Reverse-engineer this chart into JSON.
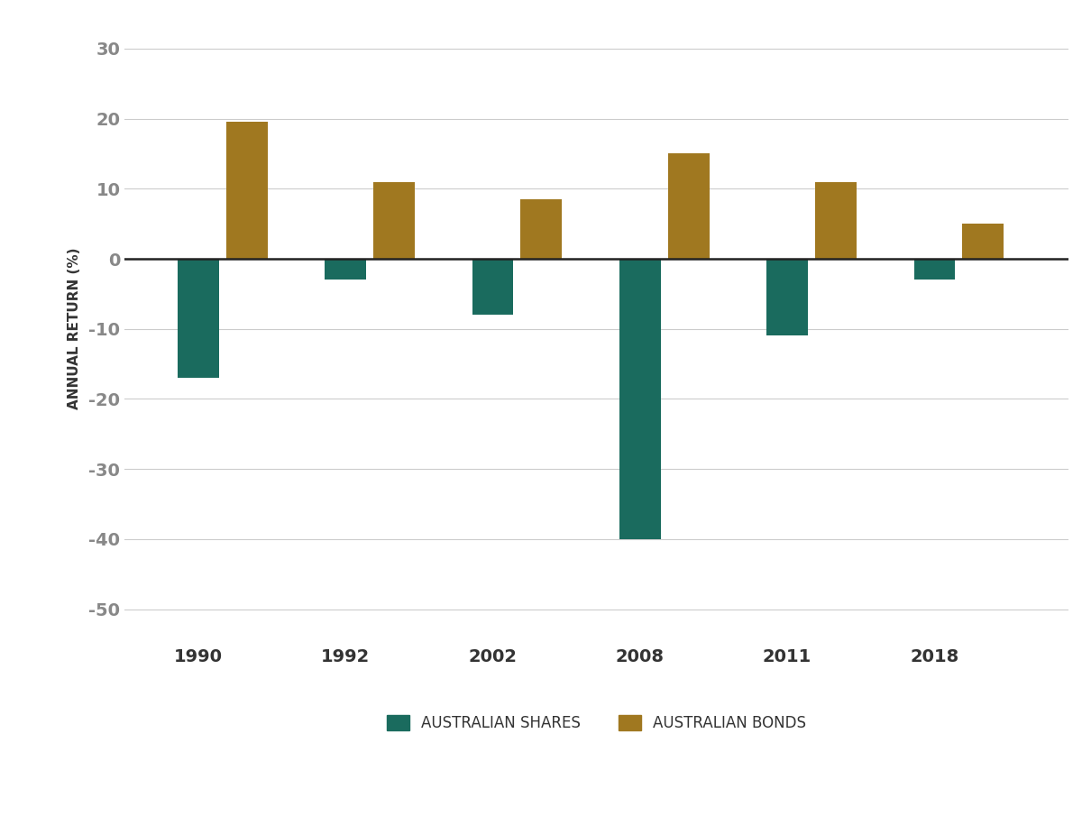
{
  "categories": [
    "1990",
    "1992",
    "2002",
    "2008",
    "2011",
    "2018"
  ],
  "shares": [
    -17,
    -3,
    -8,
    -40,
    -11,
    -3
  ],
  "bonds": [
    19.5,
    11,
    8.5,
    15,
    11,
    5
  ],
  "shares_color": "#1a6b5e",
  "bonds_color": "#a07820",
  "ylabel": "ANNUAL RETURN (%)",
  "ylim": [
    -55,
    35
  ],
  "yticks": [
    30,
    20,
    10,
    0,
    -10,
    -20,
    -30,
    -40,
    -50
  ],
  "legend_shares": "AUSTRALIAN SHARES",
  "legend_bonds": "AUSTRALIAN BONDS",
  "background_color": "#ffffff",
  "grid_color": "#cccccc",
  "text_color": "#333333",
  "tick_color": "#888888",
  "bar_width": 0.28,
  "bar_gap": 0.05,
  "title_fontsize": 14
}
